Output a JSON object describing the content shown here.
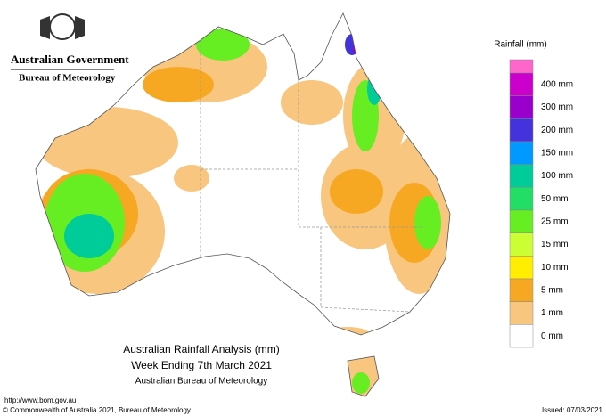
{
  "header": {
    "government": "Australian Government",
    "agency": "Bureau of Meteorology"
  },
  "legend": {
    "title": "Rainfall (mm)",
    "items": [
      {
        "label": "400 mm",
        "color": "#cc00cc"
      },
      {
        "label": "300 mm",
        "color": "#9900cc"
      },
      {
        "label": "200 mm",
        "color": "#4433dd"
      },
      {
        "label": "150 mm",
        "color": "#0099ff"
      },
      {
        "label": "100 mm",
        "color": "#00cc99"
      },
      {
        "label": "50 mm",
        "color": "#22dd66"
      },
      {
        "label": "25 mm",
        "color": "#66ee22"
      },
      {
        "label": "15 mm",
        "color": "#ccff33"
      },
      {
        "label": "10 mm",
        "color": "#ffee00"
      },
      {
        "label": "5 mm",
        "color": "#f7a823"
      },
      {
        "label": "1 mm",
        "color": "#f8c67e"
      },
      {
        "label": "0 mm",
        "color": "#ffffff"
      }
    ]
  },
  "caption": {
    "title": "Australian Rainfall Analysis (mm)",
    "period": "Week Ending 7th March 2021",
    "source": "Australian Bureau of Meteorology"
  },
  "footer": {
    "url": "http://www.bom.gov.au",
    "copyright": "© Commonwealth of Australia 2021, Bureau of Meteorology",
    "issued": "Issued: 07/03/2021"
  }
}
